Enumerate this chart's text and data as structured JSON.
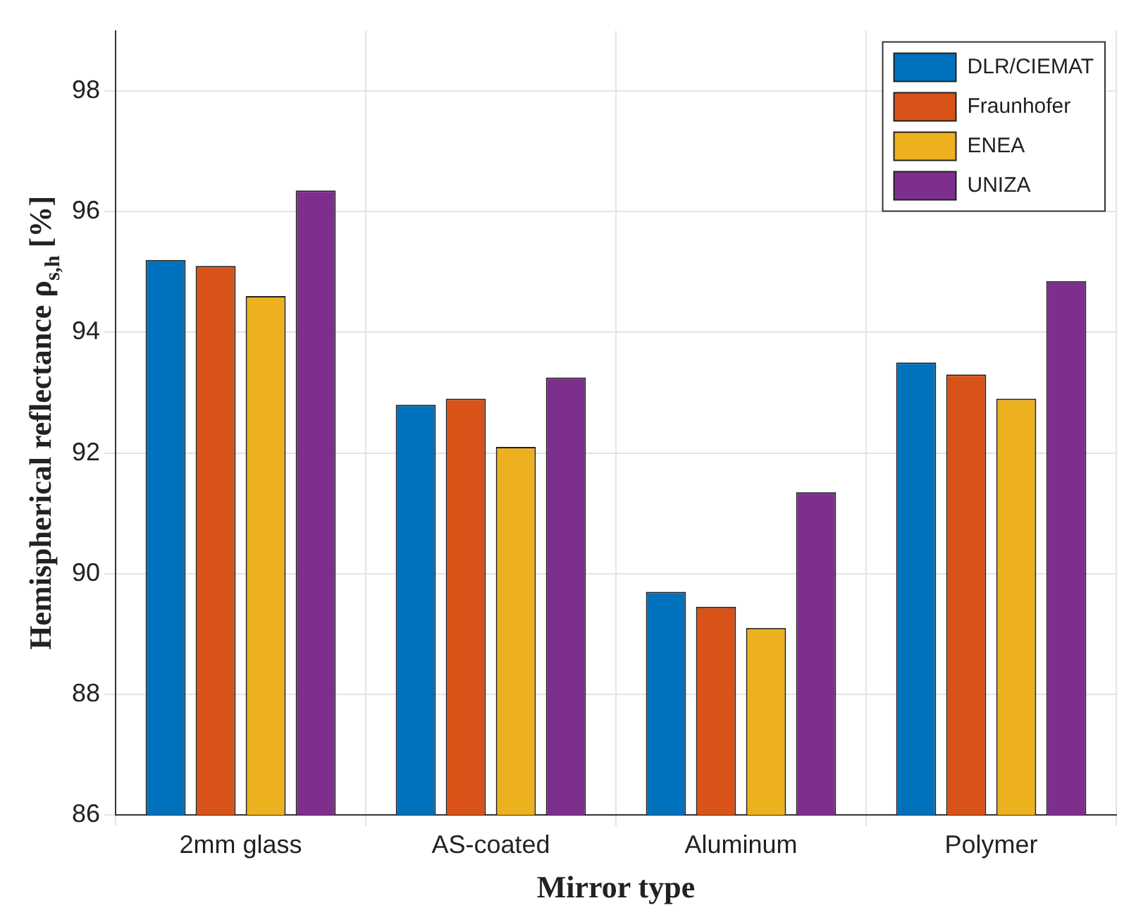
{
  "chart_data": {
    "type": "bar",
    "xlabel": "Mirror type",
    "ylabel": "Hemispherical reflectance ρ$_{s,h}$ [%]",
    "categories": [
      "2mm glass",
      "AS-coated",
      "Aluminum",
      "Polymer"
    ],
    "series": [
      {
        "name": "DLR/CIEMAT",
        "color": "#0072bd",
        "values": [
          95.2,
          92.8,
          89.7,
          93.5
        ]
      },
      {
        "name": "Fraunhofer",
        "color": "#d95319",
        "values": [
          95.1,
          92.9,
          89.45,
          93.3
        ]
      },
      {
        "name": "ENEA",
        "color": "#edb120",
        "values": [
          94.6,
          92.1,
          89.1,
          92.9
        ]
      },
      {
        "name": "UNIZA",
        "color": "#7e2f8e",
        "values": [
          96.35,
          93.25,
          91.35,
          94.85
        ]
      }
    ],
    "ylim": [
      86,
      99
    ],
    "yticks": [
      86,
      88,
      90,
      92,
      94,
      96,
      98
    ],
    "grid": true,
    "legend": "top right"
  }
}
